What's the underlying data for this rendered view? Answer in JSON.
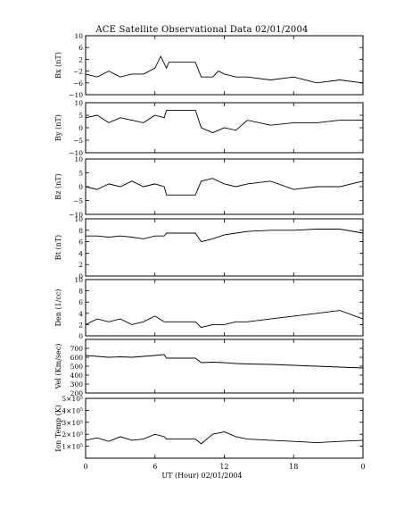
{
  "figure": {
    "title": "ACE Satellite Observational Data   02/01/2004",
    "xlabel": "UT (Hour)   02/01/2004",
    "x_ticks": [
      "0",
      "6",
      "12",
      "18",
      "0"
    ]
  },
  "chart_data": [
    {
      "type": "line",
      "ylabel": "Bx (nT)",
      "ylim": [
        -10,
        10
      ],
      "ticks": [
        -10,
        -6,
        -2,
        2,
        6,
        10
      ],
      "tick_labels": [
        "−10",
        "−6",
        "−2",
        "2",
        "6",
        "10"
      ],
      "x": [
        0,
        1,
        2,
        3,
        4,
        5,
        6,
        6.5,
        7,
        7.2,
        9.5,
        10,
        11,
        11.5,
        12,
        13,
        14,
        16,
        18,
        20,
        22,
        24
      ],
      "y": [
        -3,
        -4,
        -2,
        -4,
        -3,
        -3,
        -1,
        3,
        -1,
        1,
        1,
        -4,
        -4,
        -2,
        -3,
        -4,
        -4,
        -5,
        -4,
        -6,
        -5,
        -6
      ]
    },
    {
      "type": "line",
      "ylabel": "By (nT)",
      "ylim": [
        -10,
        10
      ],
      "ticks": [
        -10,
        -5,
        0,
        5,
        10
      ],
      "tick_labels": [
        "−10",
        "−5",
        "0",
        "5",
        "10"
      ],
      "x": [
        0,
        1,
        2,
        3,
        4,
        5,
        6,
        6.8,
        7,
        9.5,
        10,
        11,
        12,
        13,
        14,
        16,
        18,
        20,
        22,
        24
      ],
      "y": [
        4,
        5,
        2,
        4,
        3,
        2,
        5,
        4,
        7,
        7,
        0,
        -2,
        0,
        -1,
        3,
        1,
        2,
        2,
        3,
        3
      ]
    },
    {
      "type": "line",
      "ylabel": "Bz (nT)",
      "ylim": [
        -10,
        10
      ],
      "ticks": [
        -10,
        -5,
        0,
        5,
        10
      ],
      "tick_labels": [
        "−10",
        "−5",
        "0",
        "5",
        "10"
      ],
      "x": [
        0,
        1,
        2,
        3,
        4,
        5,
        6,
        6.8,
        7,
        9.5,
        10,
        11,
        12,
        13,
        14,
        16,
        18,
        20,
        22,
        24
      ],
      "y": [
        0,
        -1,
        1,
        0,
        2,
        0,
        1,
        0,
        -3,
        -3,
        2,
        3,
        1,
        0,
        1,
        2,
        -1,
        0,
        0,
        2
      ]
    },
    {
      "type": "line",
      "ylabel": "Bt (nT)",
      "ylim": [
        0,
        10
      ],
      "ticks": [
        0,
        2,
        4,
        6,
        8,
        10
      ],
      "tick_labels": [
        "0",
        "2",
        "4",
        "6",
        "8",
        "10"
      ],
      "x": [
        0,
        1,
        2,
        3,
        4,
        5,
        6,
        6.8,
        7,
        9.5,
        10,
        11,
        12,
        13,
        14,
        16,
        18,
        20,
        22,
        24
      ],
      "y": [
        7,
        7,
        6.8,
        7,
        6.8,
        6.5,
        7,
        7,
        7.5,
        7.5,
        6,
        6.5,
        7.2,
        7.5,
        7.8,
        8,
        8,
        8.2,
        8.2,
        7.5
      ]
    },
    {
      "type": "line",
      "ylabel": "Den (1/cc)",
      "ylim": [
        0,
        10
      ],
      "ticks": [
        0,
        2,
        4,
        6,
        8,
        10
      ],
      "tick_labels": [
        "0",
        "2",
        "4",
        "6",
        "8",
        "10"
      ],
      "x": [
        0,
        1,
        2,
        3,
        4,
        5,
        6,
        6.8,
        7,
        9.5,
        10,
        11,
        12,
        13,
        14,
        16,
        18,
        20,
        22,
        24
      ],
      "y": [
        2,
        3,
        2.5,
        3,
        2,
        2.5,
        3.5,
        2.5,
        2.5,
        2.5,
        1.5,
        2,
        2,
        2.5,
        2.5,
        3,
        3.5,
        4,
        4.5,
        3
      ]
    },
    {
      "type": "line",
      "ylabel": "Vel (Km/sec)",
      "ylim": [
        200,
        800
      ],
      "ticks": [
        200,
        300,
        400,
        500,
        600,
        700
      ],
      "tick_labels": [
        "200",
        "300",
        "400",
        "500",
        "600",
        "700"
      ],
      "x": [
        0,
        1,
        2,
        3,
        4,
        5,
        6,
        6.8,
        7,
        9.5,
        10,
        11,
        12,
        13,
        14,
        16,
        18,
        20,
        22,
        24
      ],
      "y": [
        620,
        610,
        600,
        605,
        600,
        610,
        620,
        630,
        590,
        590,
        540,
        545,
        540,
        530,
        525,
        520,
        510,
        500,
        490,
        480
      ]
    },
    {
      "type": "line",
      "ylabel": "Ion Temp (K)",
      "ylim": [
        0,
        500000
      ],
      "ticks": [
        100000,
        200000,
        300000,
        400000,
        500000
      ],
      "tick_labels": [
        "1×10⁵",
        "2×10⁵",
        "3×10⁵",
        "4×10⁵",
        "5×10⁵"
      ],
      "x": [
        0,
        1,
        2,
        3,
        4,
        5,
        6,
        6.8,
        7,
        9.5,
        10,
        11,
        12,
        13,
        14,
        16,
        18,
        20,
        22,
        24
      ],
      "y": [
        150000,
        170000,
        140000,
        180000,
        150000,
        160000,
        200000,
        180000,
        160000,
        160000,
        120000,
        200000,
        220000,
        180000,
        160000,
        150000,
        140000,
        130000,
        140000,
        150000
      ]
    }
  ]
}
